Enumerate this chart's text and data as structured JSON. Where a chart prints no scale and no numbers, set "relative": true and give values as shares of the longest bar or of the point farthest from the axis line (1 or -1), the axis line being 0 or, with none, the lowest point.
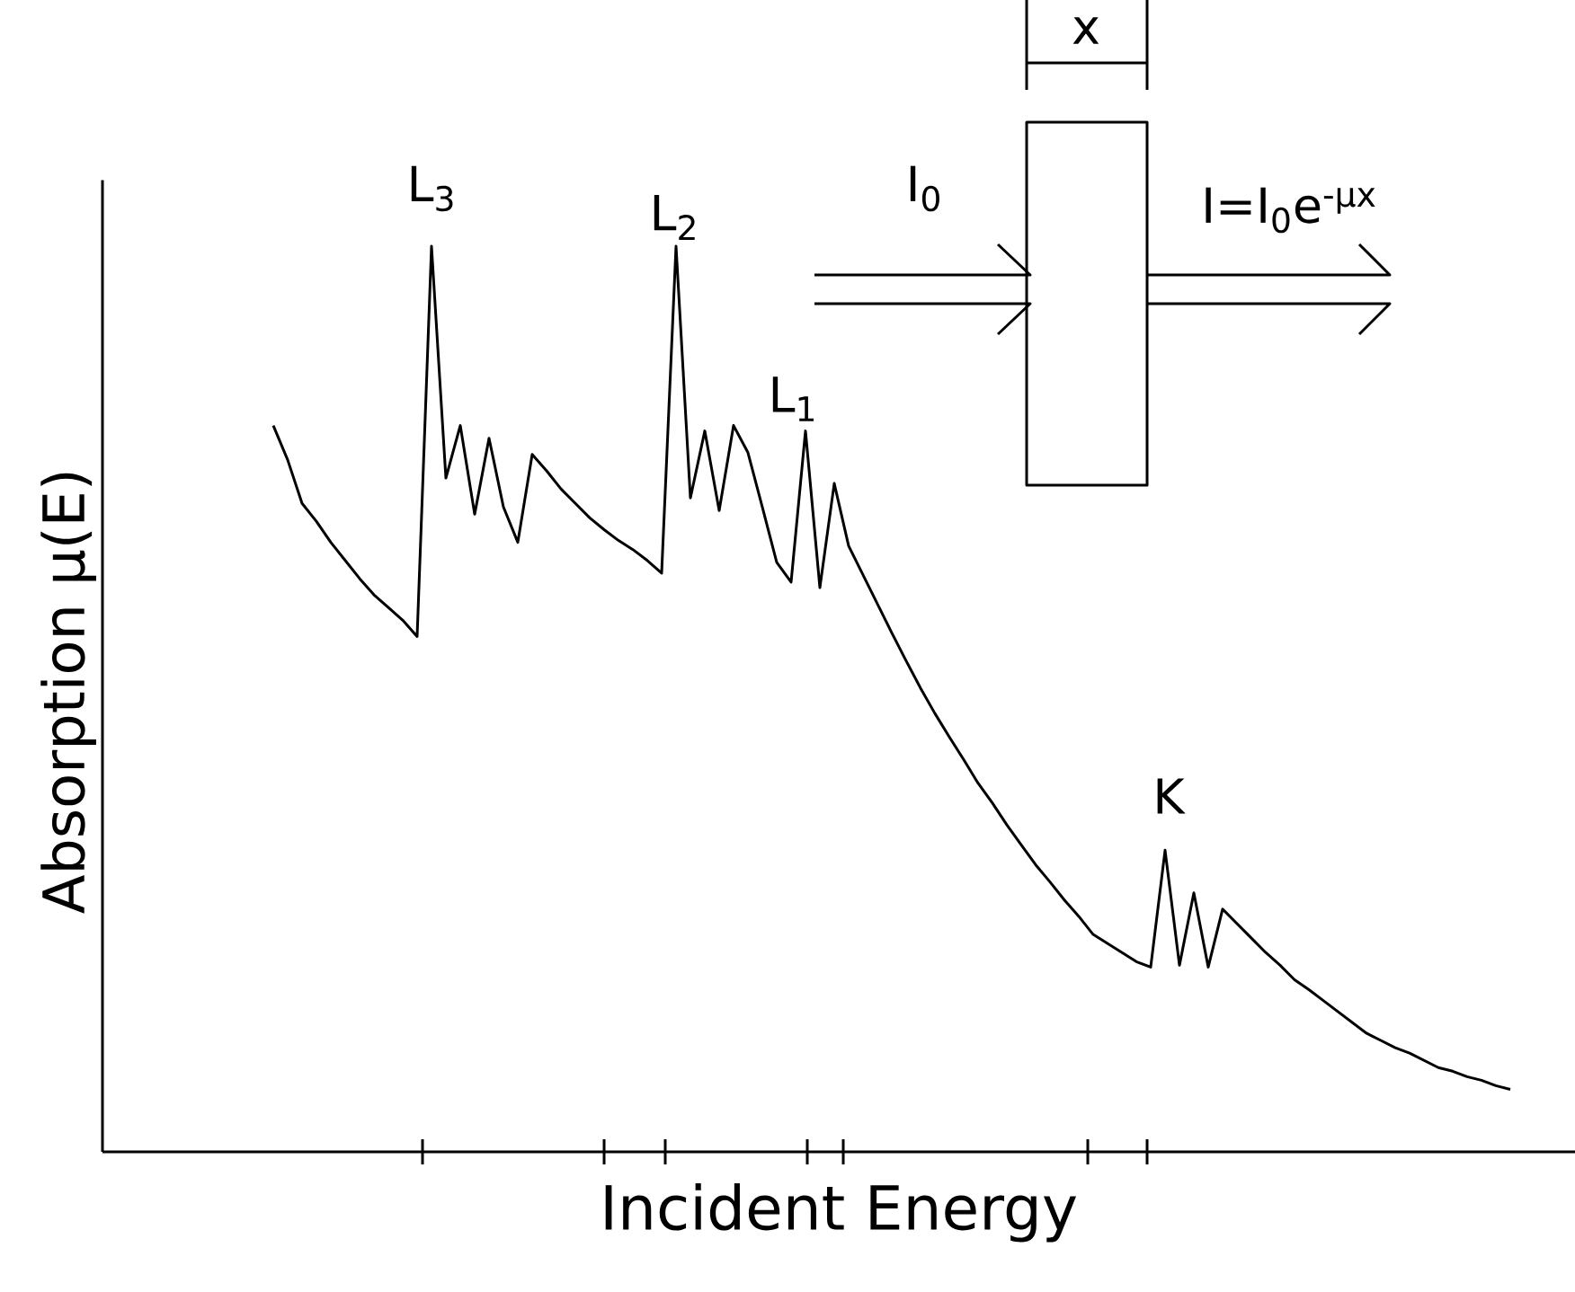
{
  "chart_data": {
    "type": "line",
    "relative": true,
    "xlabel": "Incident Energy",
    "ylabel": "Absorption μ(E)",
    "marker": "none",
    "categories": [
      null,
      null,
      null,
      null,
      null,
      null,
      null,
      null,
      null,
      null,
      null,
      null,
      null,
      null,
      null,
      null,
      null,
      null,
      null,
      null,
      null,
      null,
      null,
      null,
      null,
      null,
      null,
      null,
      null,
      null,
      null,
      null,
      null,
      null,
      null,
      null,
      null,
      null,
      null,
      null,
      null,
      null,
      null,
      null,
      null,
      null,
      null,
      null,
      null,
      null,
      null,
      null,
      null,
      null,
      null,
      null,
      null,
      null,
      null,
      null,
      null,
      null,
      null,
      null,
      null,
      null,
      null,
      null,
      null,
      null,
      null,
      null,
      null,
      null,
      null,
      null,
      null,
      null,
      null,
      null,
      null,
      null,
      null,
      null,
      null,
      null,
      null
    ],
    "series": [
      {
        "color": "#000000",
        "values": [
          0.802,
          0.764,
          0.716,
          0.696,
          0.673,
          0.653,
          0.633,
          0.615,
          0.601,
          0.587,
          0.569,
          1.0,
          0.744,
          0.802,
          0.704,
          0.788,
          0.712,
          0.673,
          0.77,
          0.752,
          0.732,
          0.716,
          0.7,
          0.687,
          0.675,
          0.665,
          0.653,
          0.639,
          1.0,
          0.722,
          0.796,
          0.708,
          0.802,
          0.772,
          0.712,
          0.651,
          0.629,
          0.796,
          0.623,
          0.738,
          0.669,
          0.637,
          0.605,
          0.573,
          0.542,
          0.512,
          0.484,
          0.458,
          0.433,
          0.407,
          0.385,
          0.361,
          0.339,
          0.317,
          0.298,
          0.278,
          0.26,
          0.24,
          0.23,
          0.22,
          0.21,
          0.204,
          0.333,
          0.206,
          0.286,
          0.204,
          0.268,
          0.252,
          0.236,
          0.22,
          0.206,
          0.19,
          0.179,
          0.167,
          0.155,
          0.143,
          0.131,
          0.123,
          0.115,
          0.109,
          0.101,
          0.093,
          0.089,
          0.083,
          0.079,
          0.073,
          0.069
        ]
      }
    ],
    "annotations": [
      "x",
      "I$_{0}$",
      "I=I$_{0}$e$^{-μx}$",
      "L$_{3}$",
      "L$_{2}$",
      "L$_{1}$",
      "K"
    ]
  }
}
